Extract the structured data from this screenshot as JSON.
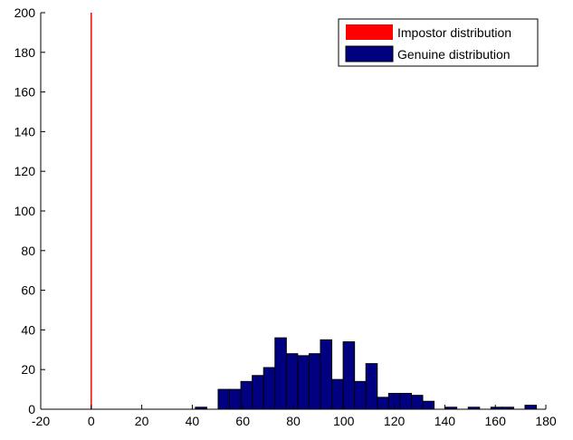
{
  "chart_data": {
    "type": "bar",
    "xlim": [
      -20,
      180
    ],
    "ylim": [
      0,
      200
    ],
    "x_ticks": [
      -20,
      0,
      20,
      40,
      60,
      80,
      100,
      120,
      140,
      160,
      180
    ],
    "y_ticks": [
      0,
      20,
      40,
      60,
      80,
      100,
      120,
      140,
      160,
      180,
      200
    ],
    "bin_width": 4.5,
    "grid": false,
    "legend_position": "top-right",
    "series": [
      {
        "name": "Impostor distribution",
        "color": "#ff0000",
        "style": "line",
        "x": [
          0,
          0
        ],
        "y": [
          0,
          200
        ]
      },
      {
        "name": "Genuine distribution",
        "color": "#000080",
        "edge_color": "#000000",
        "style": "bar",
        "bin_centers": [
          43.5,
          52.5,
          57,
          61.5,
          66,
          70.5,
          75,
          79.5,
          84,
          88.5,
          93,
          97.5,
          102,
          106.5,
          111,
          115.5,
          120,
          124.5,
          129,
          133.5,
          138,
          142.5,
          151.5,
          160.5,
          165,
          174
        ],
        "values": [
          1,
          10,
          10,
          14,
          17,
          21,
          36,
          28,
          27,
          28,
          35,
          15,
          34,
          14,
          23,
          6,
          8,
          8,
          7,
          4,
          0,
          1,
          1,
          1,
          1,
          2
        ]
      }
    ]
  }
}
